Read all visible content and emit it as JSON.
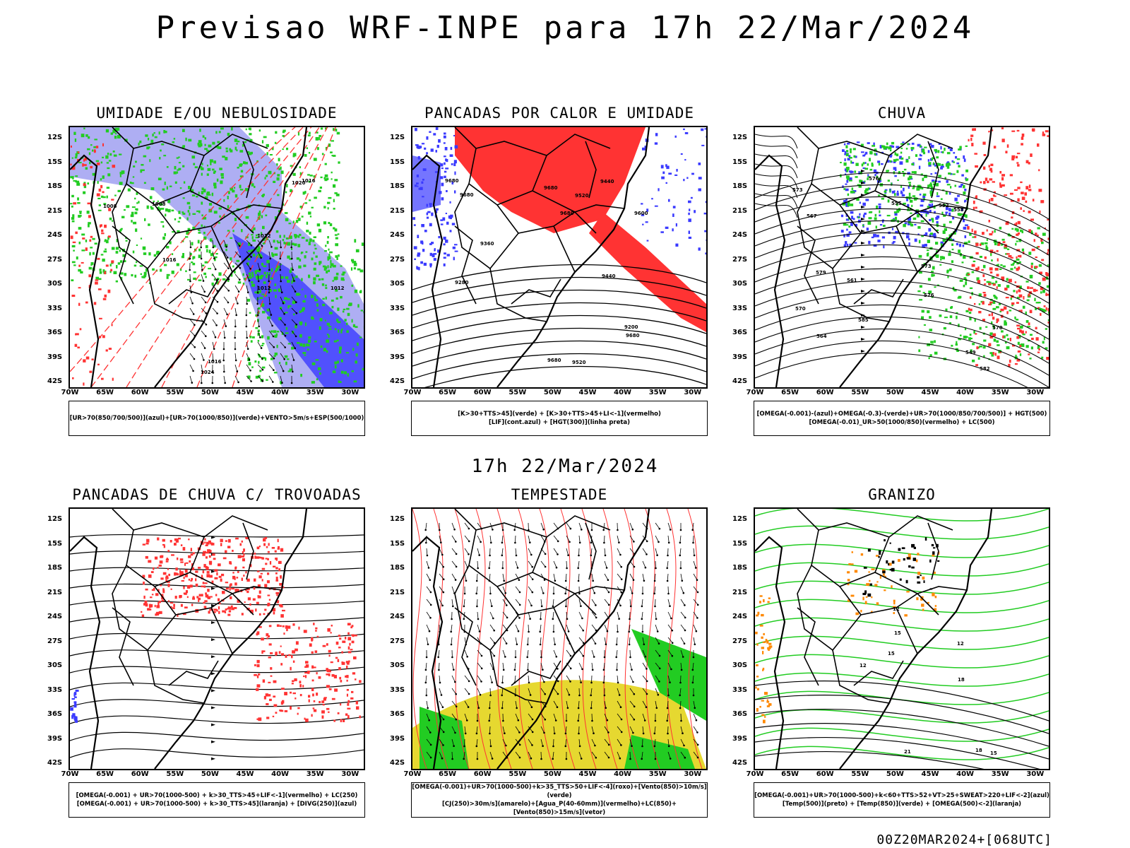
{
  "title": "Previsao WRF-INPE  para 17h 22/Mar/2024",
  "mid_title": "17h 22/Mar/2024",
  "footer": "00Z20MAR2024+[068UTC]",
  "lat_labels": [
    "12S",
    "15S",
    "18S",
    "21S",
    "24S",
    "27S",
    "30S",
    "33S",
    "36S",
    "39S",
    "42S"
  ],
  "lon_labels": [
    "70W",
    "65W",
    "60W",
    "55W",
    "50W",
    "45W",
    "40W",
    "35W",
    "30W"
  ],
  "panels": [
    {
      "title": "UMIDADE E/OU NEBULOSIDADE",
      "legend1": "[UR>70(850/700/500)](azul)+[UR>70(1000/850)](verde)+VENTO>5m/s+ESP(500/1000)",
      "legend2": "",
      "contours": [
        "1008",
        "1008",
        "1012",
        "1016",
        "1020",
        "1024",
        "1012",
        "1016",
        "1016",
        "1012"
      ]
    },
    {
      "title": "PANCADAS POR CALOR E UMIDADE",
      "legend1": "[K>30+TTS>45](verde) + [K>30+TTS>45+LI<-1](vermelho)",
      "legend2": "[LIF](cont.azul) + [HGT(300)](linha preta)",
      "contours": [
        "9680",
        "9680",
        "9680",
        "9600",
        "9680",
        "9680",
        "9520",
        "9440",
        "9360",
        "9280",
        "9200",
        "9520",
        "9440",
        "9680"
      ]
    },
    {
      "title": "CHUVA",
      "legend1": "[OMEGA(-0.001)-(azul)+OMEGA(-0.3)-(verde)+UR>70(1000/850/700/500)] + HGT(500)",
      "legend2": "[OMEGA(-0.01)_UR>50(1000/850)(vermelho) + LC(500)",
      "contours": [
        "582",
        "579",
        "576",
        "573",
        "570",
        "567",
        "564",
        "561",
        "558",
        "555",
        "552",
        "549",
        "585",
        "576",
        "573",
        "570"
      ]
    },
    {
      "title": "PANCADAS DE CHUVA C/ TROVOADAS",
      "legend1": "[OMEGA(-0.001) + UR>70(1000-500) + k>30_TTS>45+LIF<-1](vermelho) + LC(250)",
      "legend2": "[OMEGA(-0.001) + UR>70(1000-500) + k>30_TTS>45](laranja) + [DIVG(250)](azul)",
      "contours": []
    },
    {
      "title": "TEMPESTADE",
      "legend1": "[OMEGA(-0.001)+UR>70(1000-500)+k>35_TTS>50+LIF<-4](roxo)+[Vento(850)>10m/s](verde)",
      "legend2": "[CJ(250)>30m/s](amarelo)+[Agua_P(40-60mm)](vermelho)+LC(850)+[Vento(850)>15m/s](vetor)",
      "contours": []
    },
    {
      "title": "GRANIZO",
      "legend1": "[OMEGA(-0.001)+UR>70(1000-500)+k<60+TTS>52+VT>25+SWEAT>220+LIF<-2](azul)",
      "legend2": "[Temp(500)](preto) + [Temp(850)](verde) + [OMEGA(500)<-2](laranja)",
      "contours": [
        "12",
        "15",
        "18",
        "21",
        "12",
        "15",
        "12",
        "15",
        "18"
      ]
    }
  ],
  "colors": {
    "blue_fill": "#9a9af0",
    "blue_dark": "#3a3aff",
    "green": "#22cc22",
    "red": "#ff3333",
    "yellow": "#e6d830",
    "black": "#000000"
  }
}
